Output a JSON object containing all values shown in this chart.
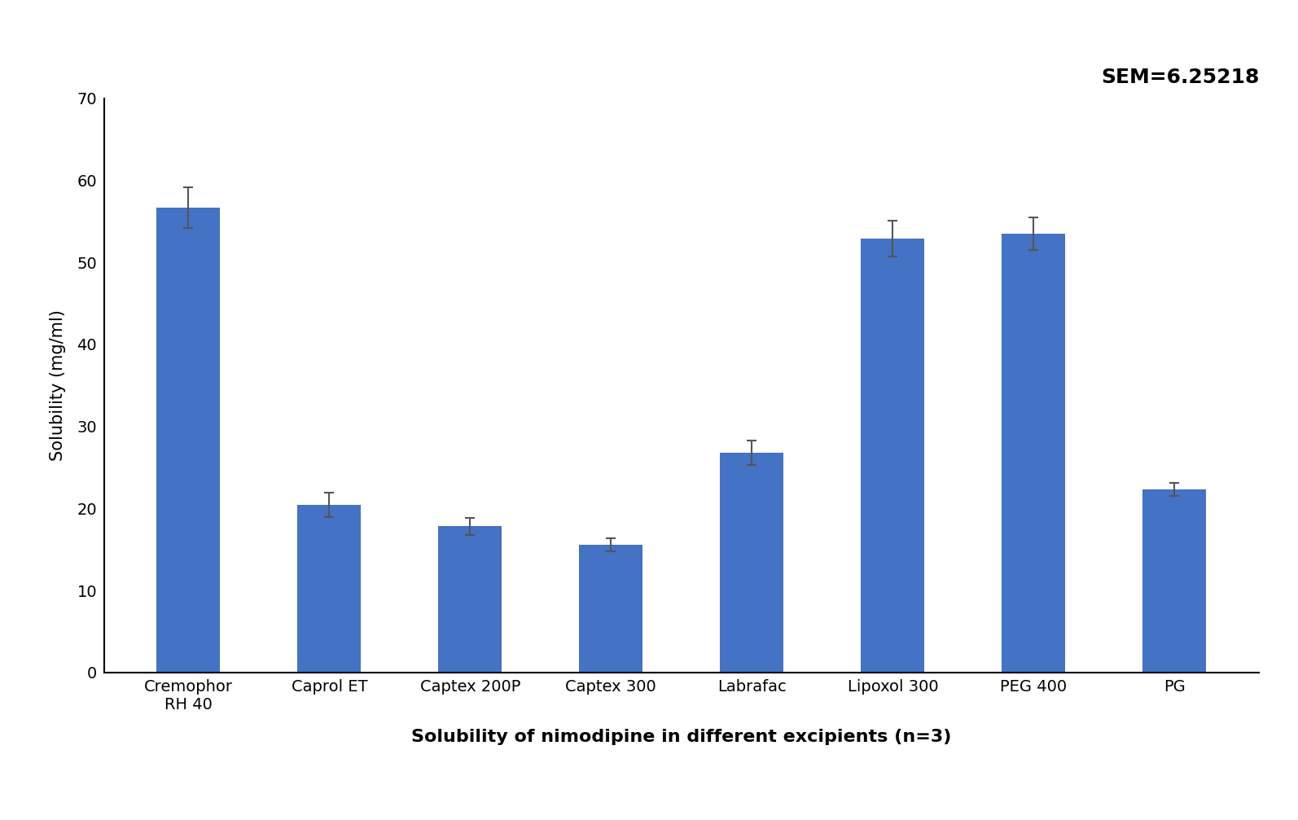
{
  "categories": [
    "Cremophor\nRH 40",
    "Caprol ET",
    "Captex 200P",
    "Captex 300",
    "Labrafac",
    "Lipoxol 300",
    "PEG 400",
    "PG"
  ],
  "values": [
    56.7,
    20.4,
    17.8,
    15.6,
    26.8,
    52.9,
    53.5,
    22.3
  ],
  "errors": [
    2.5,
    1.5,
    1.0,
    0.8,
    1.5,
    2.2,
    2.0,
    0.8
  ],
  "bar_color": "#4472C4",
  "ylabel": "Solubility (mg/ml)",
  "xlabel": "Solubility of nimodipine in different excipients (n=3)",
  "ylim": [
    0,
    70
  ],
  "yticks": [
    0,
    10,
    20,
    30,
    40,
    50,
    60,
    70
  ],
  "sem_text": "SEM=6.25218",
  "bar_width": 0.45,
  "error_color": "#555555",
  "capsize": 4,
  "label_fontsize": 15,
  "tick_fontsize": 14,
  "sem_fontsize": 18,
  "xlabel_fontsize": 16,
  "background_color": "#ffffff",
  "figure_bg": "#ffffff"
}
